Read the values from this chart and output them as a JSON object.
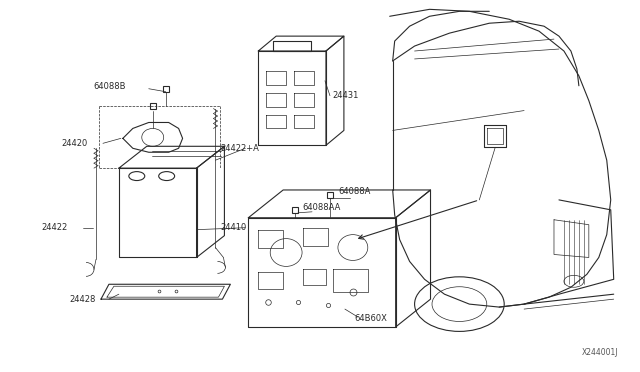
{
  "bg_color": "#ffffff",
  "fig_width": 6.4,
  "fig_height": 3.72,
  "dpi": 100,
  "diagram_code": "X244001J",
  "line_color": "#2a2a2a",
  "text_color": "#2a2a2a",
  "label_fontsize": 6.0,
  "parts": {
    "battery_label": "24410",
    "cable_label": "24422",
    "rod_label": "24422+A",
    "tray_label": "24428",
    "cover_label": "24431",
    "bolt1_label": "64088B",
    "bolt2_label": "64088A",
    "bolt3_label": "64088AA",
    "bracket_label": "24420",
    "mount_label": "64B60X"
  }
}
